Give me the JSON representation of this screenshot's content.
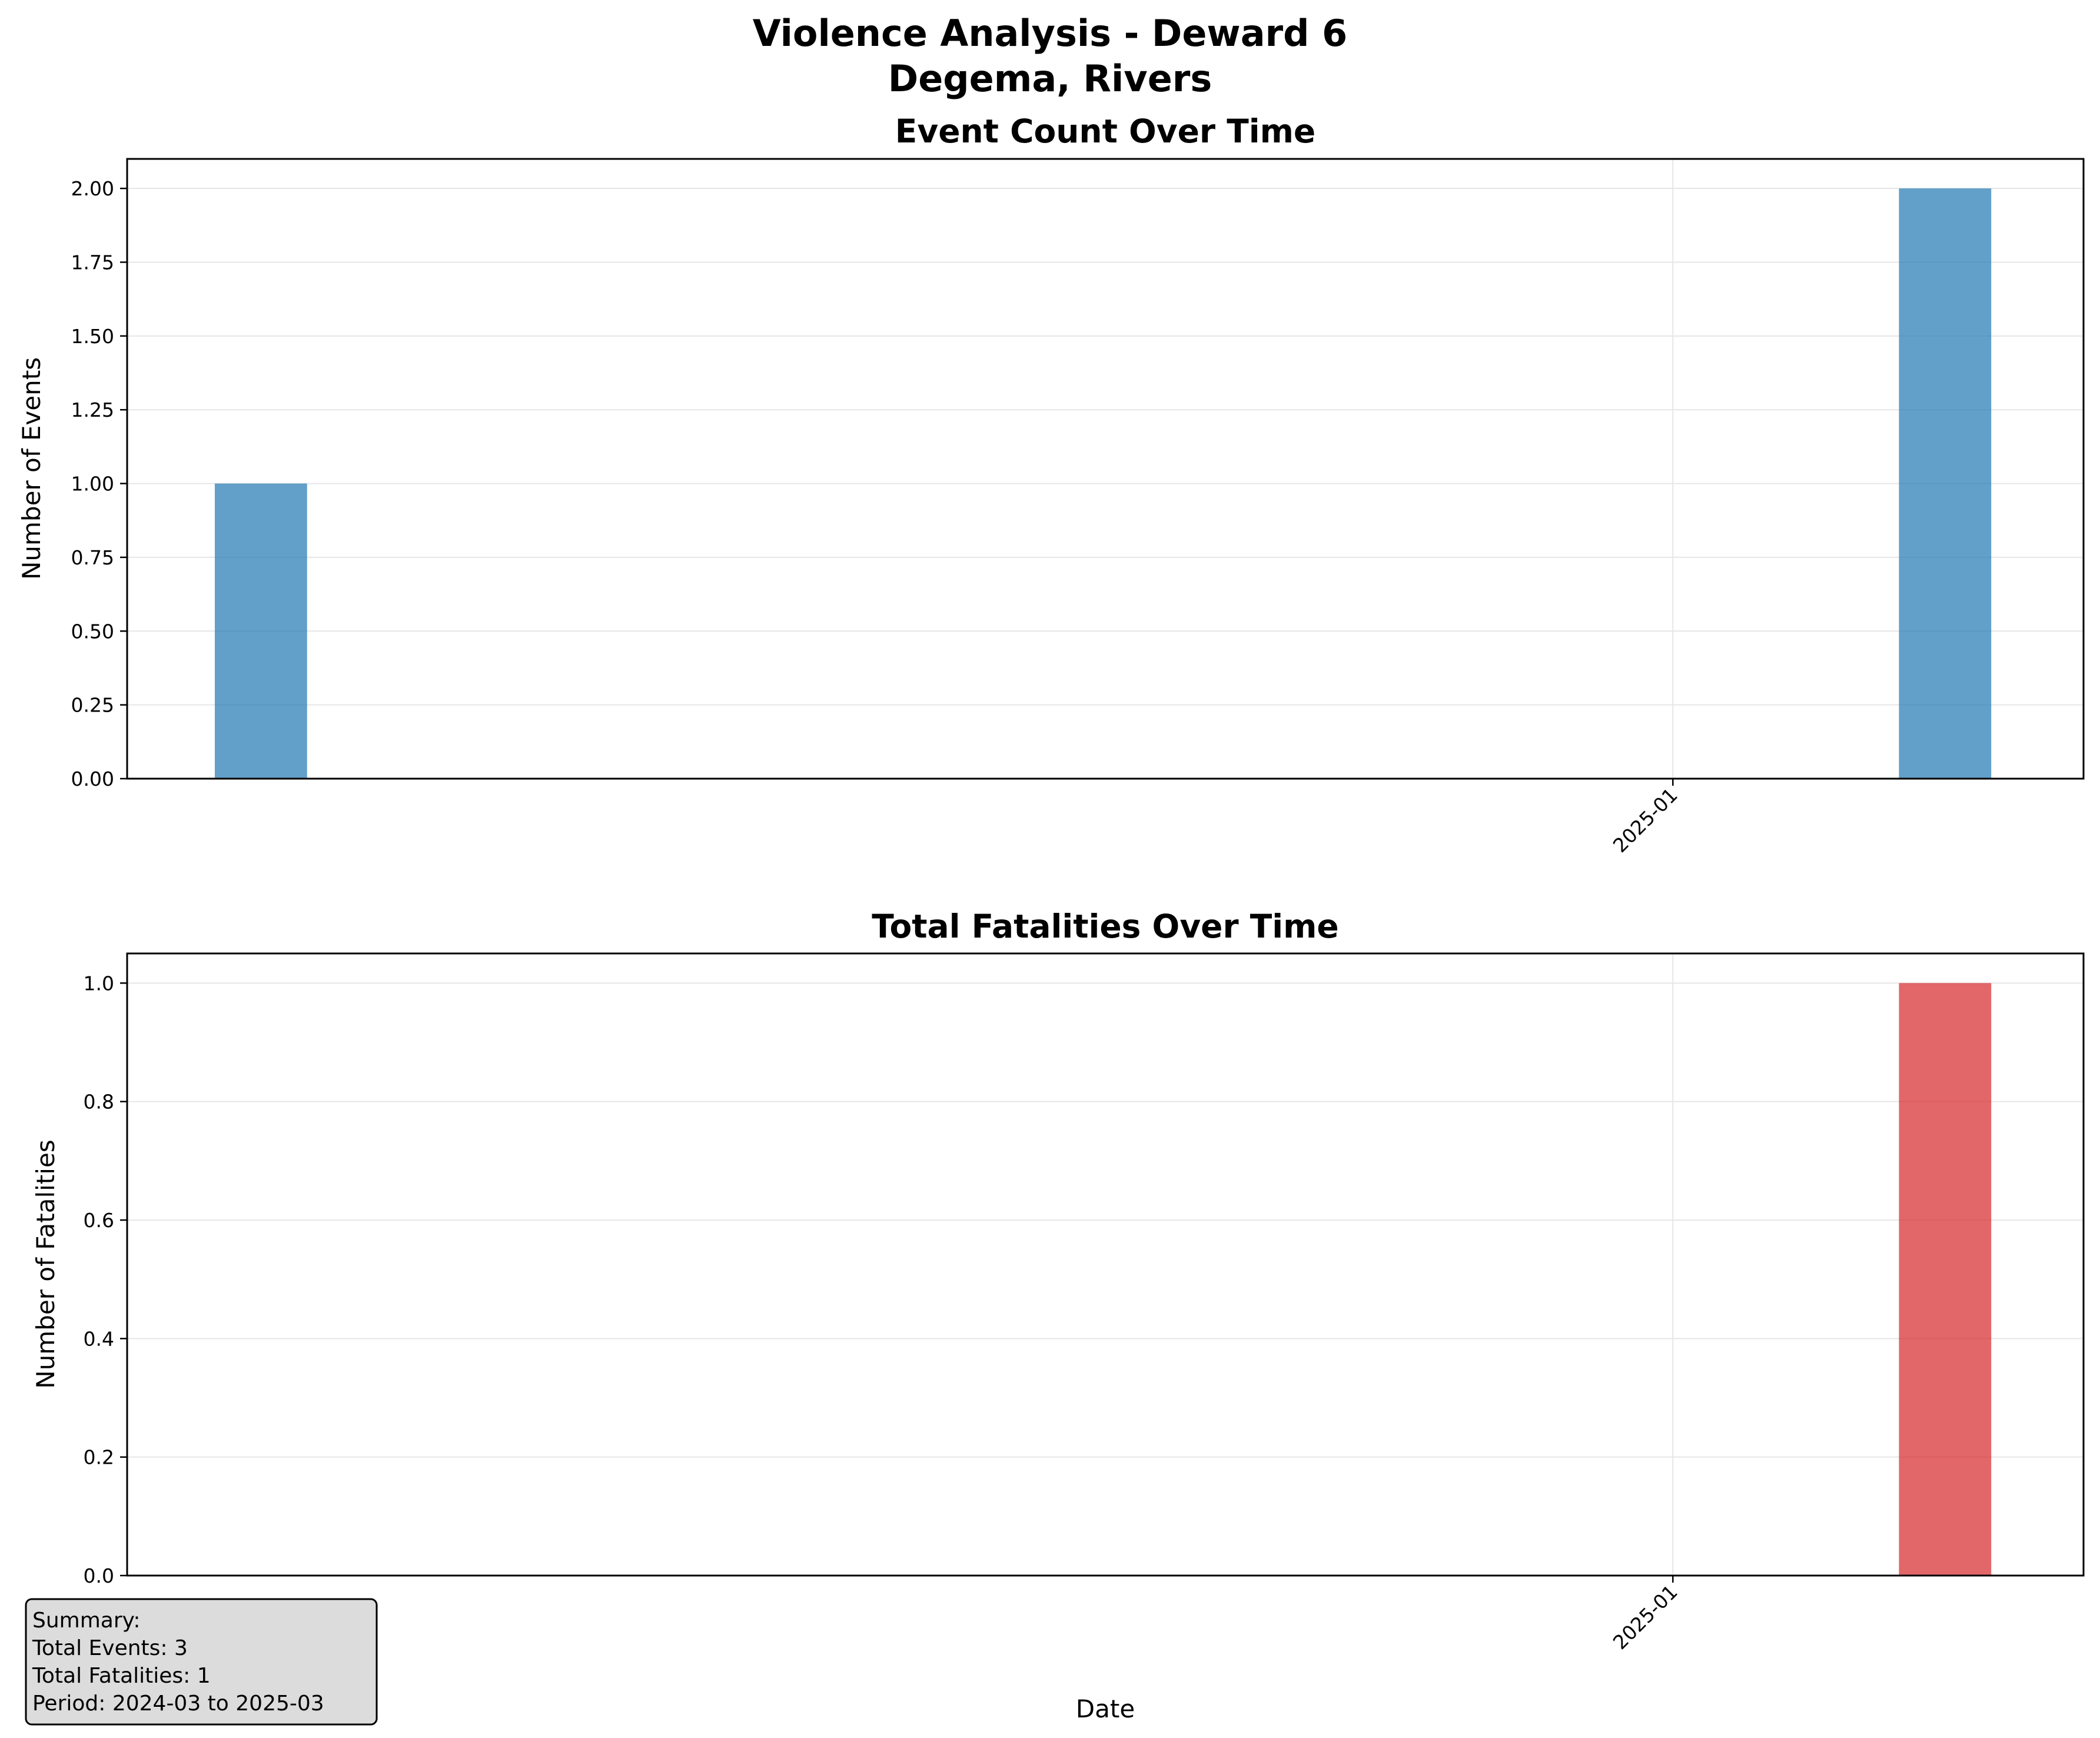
{
  "figure": {
    "title_line1": "Violence Analysis - Deward 6",
    "title_line2": "Degema, Rivers"
  },
  "colors": {
    "events_bar": "#1f77b4",
    "fatalities_bar": "#d62728",
    "grid": "#e6e6e6",
    "summary_box_fill": "#dcdcdc"
  },
  "chart_data": [
    {
      "type": "bar",
      "title": "Event Count Over Time",
      "xlabel": "",
      "ylabel": "Number of Events",
      "x": [
        "2024-03",
        "2025-03"
      ],
      "values": [
        1,
        2
      ],
      "xticks": [
        "2025-01"
      ],
      "xlim": [
        "2024-02-01",
        "2025-03-31"
      ],
      "ylim": [
        0,
        2.1
      ],
      "yticks": [
        "0.00",
        "0.25",
        "0.50",
        "0.75",
        "1.00",
        "1.25",
        "1.50",
        "1.75",
        "2.00"
      ],
      "bar_width_days": 20,
      "alpha": 0.7,
      "grid": true
    },
    {
      "type": "bar",
      "title": "Total Fatalities Over Time",
      "xlabel": "Date",
      "ylabel": "Number of Fatalities",
      "x": [
        "2025-03"
      ],
      "values": [
        1
      ],
      "xticks": [
        "2025-01"
      ],
      "xlim": [
        "2024-02-01",
        "2025-03-31"
      ],
      "ylim": [
        0,
        1.05
      ],
      "yticks": [
        "0.0",
        "0.2",
        "0.4",
        "0.6",
        "0.8",
        "1.0"
      ],
      "bar_width_days": 20,
      "alpha": 0.7,
      "grid": true
    }
  ],
  "summary": {
    "heading": "Summary:",
    "events": "Total Events: 3",
    "fatalities": "Total Fatalities: 1",
    "period": "Period: 2024-03 to 2025-03"
  }
}
